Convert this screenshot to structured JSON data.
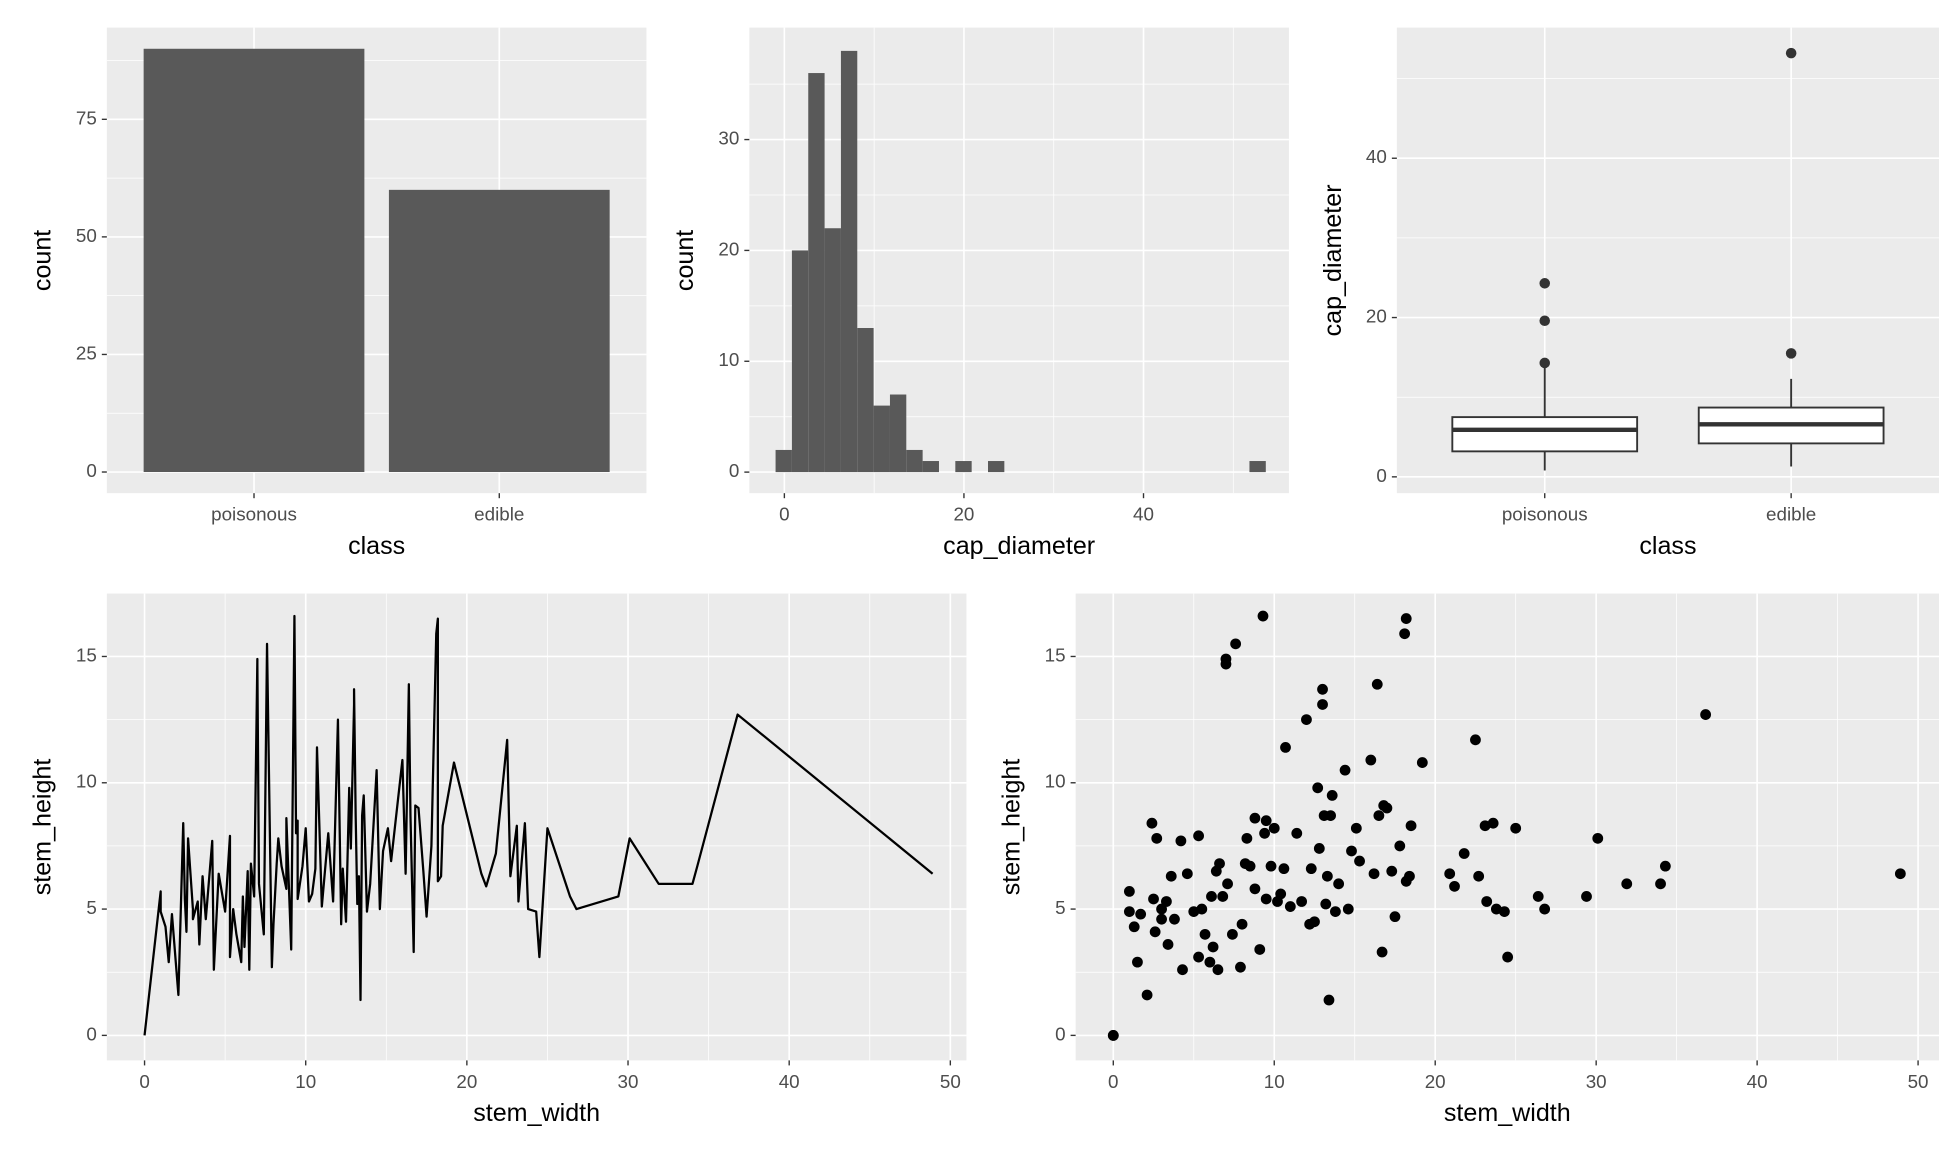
{
  "chart_data": [
    {
      "type": "bar",
      "categories": [
        "poisonous",
        "edible"
      ],
      "values": [
        90,
        60
      ],
      "color": "#595959",
      "xlabel": "class",
      "ylabel": "count",
      "ylim": [
        -4.5,
        94.5
      ],
      "yticks": [
        0,
        25,
        50,
        75
      ],
      "grid": true
    },
    {
      "type": "histogram",
      "bins": [
        -0.98,
        0.84,
        2.66,
        4.48,
        6.3,
        8.12,
        9.94,
        11.76,
        13.58,
        15.4,
        17.22,
        19.04,
        20.86,
        22.68,
        24.5,
        26.32,
        28.14,
        29.96,
        31.78,
        33.6,
        35.42,
        37.24,
        39.06,
        40.88,
        42.7,
        44.52,
        46.34,
        48.16,
        49.98,
        51.8,
        53.62
      ],
      "values": [
        2,
        20,
        36,
        22,
        38,
        13,
        6,
        7,
        2,
        1,
        0,
        1,
        0,
        1,
        0,
        0,
        0,
        0,
        0,
        0,
        0,
        0,
        0,
        0,
        0,
        0,
        0,
        0,
        0,
        1
      ],
      "color": "#595959",
      "xlabel": "cap_diameter",
      "ylabel": "count",
      "xlim": [
        -3.9,
        56.2
      ],
      "ylim": [
        -1.9,
        40.1
      ],
      "xticks": [
        0,
        20,
        40
      ],
      "yticks": [
        0,
        10,
        20,
        30
      ],
      "grid": true
    },
    {
      "type": "box",
      "categories": [
        "poisonous",
        "edible"
      ],
      "boxes": [
        {
          "whislo": 0.8,
          "q1": 3.2,
          "med": 5.9,
          "q3": 7.5,
          "whishi": 14,
          "outliers": [
            14.3,
            19.6,
            24.3
          ]
        },
        {
          "whislo": 1.3,
          "q1": 4.2,
          "med": 6.6,
          "q3": 8.7,
          "whishi": 12.3,
          "outliers": [
            15.5,
            53.2
          ]
        }
      ],
      "xlabel": "class",
      "ylabel": "cap_diameter",
      "ylim": [
        -2.05,
        56.4
      ],
      "yticks": [
        0,
        20,
        40
      ],
      "grid": true
    },
    {
      "type": "line",
      "color": "#000000",
      "xlabel": "stem_width",
      "ylabel": "stem_height",
      "xlim": [
        -2.34,
        51
      ],
      "ylim": [
        -0.99,
        17.49
      ],
      "xticks": [
        0,
        10,
        20,
        30,
        40,
        50
      ],
      "yticks": [
        0,
        5,
        10,
        15
      ],
      "grid": true,
      "x": [
        0,
        0,
        1,
        1,
        1.3,
        1.5,
        1.7,
        2.1,
        2.4,
        2.5,
        2.6,
        2.7,
        3,
        3,
        3.3,
        3.4,
        3.6,
        3.8,
        4.2,
        4.3,
        4.6,
        5,
        5.3,
        5.3,
        5.5,
        5.7,
        6,
        6.1,
        6.2,
        6.4,
        6.5,
        6.6,
        6.8,
        7,
        7,
        7.1,
        7.4,
        7.6,
        7.9,
        8,
        8.2,
        8.3,
        8.5,
        8.8,
        8.8,
        9.1,
        9.3,
        9.4,
        9.5,
        9.5,
        9.8,
        10,
        10.2,
        10.4,
        10.6,
        10.7,
        11,
        11.4,
        11.7,
        12,
        12.2,
        12.3,
        12.5,
        12.7,
        12.8,
        13,
        13,
        13.1,
        13.2,
        13.3,
        13.4,
        13.5,
        13.6,
        13.8,
        14,
        14.4,
        14.6,
        14.8,
        15.1,
        15.3,
        16,
        16.2,
        16.4,
        16.5,
        16.7,
        16.8,
        17,
        17.3,
        17.5,
        17.8,
        18.1,
        18.2,
        18.2,
        18.4,
        18.5,
        19.2,
        20.9,
        21.2,
        21.8,
        22.5,
        22.7,
        23.1,
        23.2,
        23.6,
        23.8,
        24.3,
        24.5,
        25,
        26.4,
        26.8,
        29.4,
        30.1,
        31.9,
        34,
        34.3,
        36.8,
        48.9
      ],
      "values": [
        0,
        0,
        5.7,
        4.9,
        4.3,
        2.9,
        4.8,
        1.6,
        8.4,
        5.4,
        4.1,
        7.8,
        5,
        4.6,
        5.3,
        3.6,
        6.3,
        4.6,
        7.7,
        2.6,
        6.4,
        4.9,
        7.9,
        3.1,
        5,
        4,
        2.9,
        5.5,
        3.5,
        6.5,
        2.6,
        6.8,
        5.5,
        14.9,
        14.7,
        6,
        4,
        15.5,
        2.7,
        4.4,
        6.8,
        7.8,
        6.7,
        5.8,
        8.6,
        3.4,
        16.6,
        8,
        8.5,
        5.4,
        6.7,
        8.2,
        5.3,
        5.6,
        6.6,
        11.4,
        5.1,
        8,
        5.3,
        12.5,
        4.4,
        6.6,
        4.5,
        9.8,
        7.4,
        13.1,
        13.7,
        8.7,
        5.2,
        6.3,
        1.4,
        8.7,
        9.5,
        4.9,
        6,
        10.5,
        5,
        7.3,
        8.2,
        6.9,
        10.9,
        6.4,
        13.9,
        8.7,
        3.3,
        9.1,
        9,
        6.5,
        4.7,
        7.5,
        15.9,
        16.5,
        6.1,
        6.3,
        8.3,
        10.8,
        6.4,
        5.9,
        7.2,
        11.7,
        6.3,
        8.3,
        5.3,
        8.4,
        5,
        4.9,
        3.1,
        8.2,
        5.5,
        5,
        5.5,
        7.8,
        6,
        6,
        6.7,
        12.7,
        6.4
      ]
    },
    {
      "type": "scatter",
      "color": "#000000",
      "xlabel": "stem_width",
      "ylabel": "stem_height",
      "xlim": [
        -2.34,
        51.3
      ],
      "ylim": [
        -0.99,
        17.49
      ],
      "xticks": [
        0,
        10,
        20,
        30,
        40,
        50
      ],
      "yticks": [
        0,
        5,
        10,
        15
      ],
      "grid": true,
      "x": [
        0,
        0,
        1,
        1,
        1.3,
        1.5,
        1.7,
        2.1,
        2.4,
        2.5,
        2.6,
        2.7,
        3,
        3,
        3.3,
        3.4,
        3.6,
        3.8,
        4.2,
        4.3,
        4.6,
        5,
        5.3,
        5.3,
        5.5,
        5.7,
        6,
        6.1,
        6.2,
        6.4,
        6.5,
        6.6,
        6.8,
        7,
        7,
        7.1,
        7.4,
        7.6,
        7.9,
        8,
        8.2,
        8.3,
        8.5,
        8.8,
        8.8,
        9.1,
        9.3,
        9.4,
        9.5,
        9.5,
        9.8,
        10,
        10.2,
        10.4,
        10.6,
        10.7,
        11,
        11.4,
        11.7,
        12,
        12.2,
        12.3,
        12.5,
        12.7,
        12.8,
        13,
        13,
        13.1,
        13.2,
        13.3,
        13.4,
        13.5,
        13.6,
        13.8,
        14,
        14.4,
        14.6,
        14.8,
        15.1,
        15.3,
        16,
        16.2,
        16.4,
        16.5,
        16.7,
        16.8,
        17,
        17.3,
        17.5,
        17.8,
        18.1,
        18.2,
        18.2,
        18.4,
        18.5,
        19.2,
        20.9,
        21.2,
        21.8,
        22.5,
        22.7,
        23.1,
        23.2,
        23.6,
        23.8,
        24.3,
        24.5,
        25,
        26.4,
        26.8,
        29.4,
        30.1,
        31.9,
        34,
        34.3,
        36.8,
        48.9
      ],
      "values": [
        0,
        0,
        5.7,
        4.9,
        4.3,
        2.9,
        4.8,
        1.6,
        8.4,
        5.4,
        4.1,
        7.8,
        5,
        4.6,
        5.3,
        3.6,
        6.3,
        4.6,
        7.7,
        2.6,
        6.4,
        4.9,
        7.9,
        3.1,
        5,
        4,
        2.9,
        5.5,
        3.5,
        6.5,
        2.6,
        6.8,
        5.5,
        14.9,
        14.7,
        6,
        4,
        15.5,
        2.7,
        4.4,
        6.8,
        7.8,
        6.7,
        5.8,
        8.6,
        3.4,
        16.6,
        8,
        8.5,
        5.4,
        6.7,
        8.2,
        5.3,
        5.6,
        6.6,
        11.4,
        5.1,
        8,
        5.3,
        12.5,
        4.4,
        6.6,
        4.5,
        9.8,
        7.4,
        13.1,
        13.7,
        8.7,
        5.2,
        6.3,
        1.4,
        8.7,
        9.5,
        4.9,
        6,
        10.5,
        5,
        7.3,
        8.2,
        6.9,
        10.9,
        6.4,
        13.9,
        8.7,
        3.3,
        9.1,
        9,
        6.5,
        4.7,
        7.5,
        15.9,
        16.5,
        6.1,
        6.3,
        8.3,
        10.8,
        6.4,
        5.9,
        7.2,
        11.7,
        6.3,
        8.3,
        5.3,
        8.4,
        5,
        4.9,
        3.1,
        8.2,
        5.5,
        5,
        5.5,
        7.8,
        6,
        6,
        6.7,
        12.7,
        6.4
      ]
    }
  ]
}
